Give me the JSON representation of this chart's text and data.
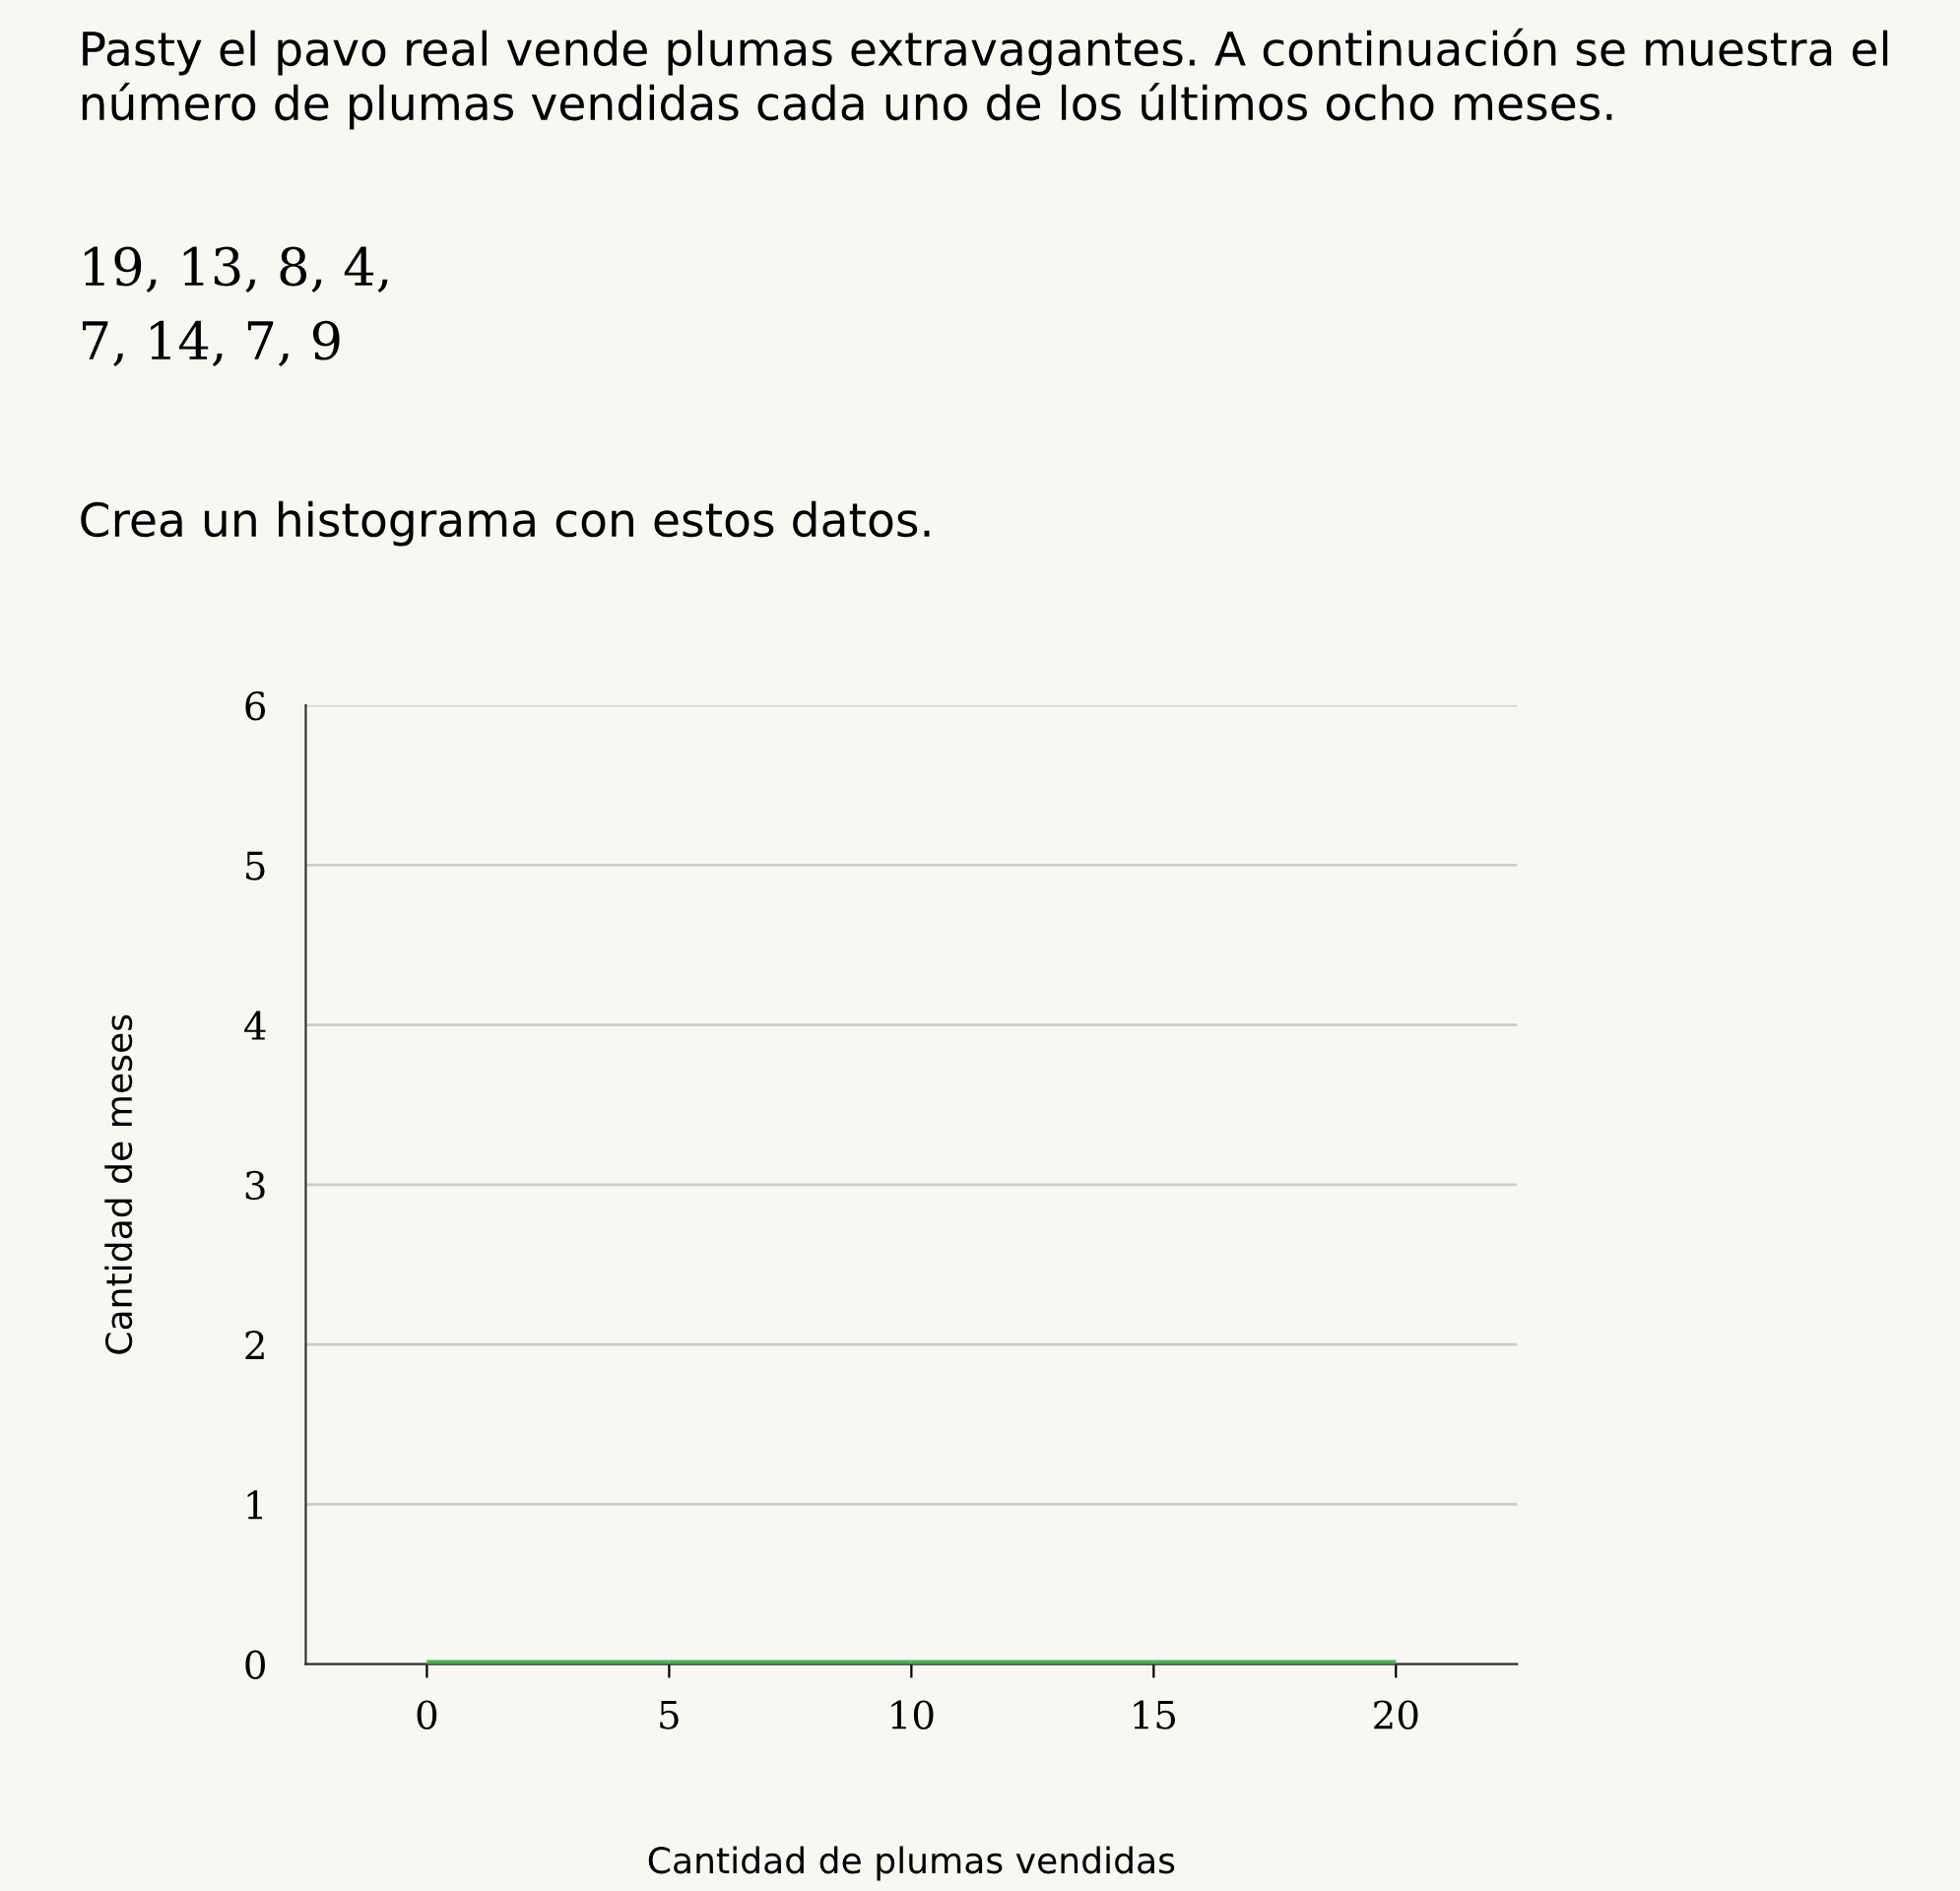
{
  "chart_data": {
    "type": "histogram",
    "title": "Pasty el pavo real vende plumas extravagantes. A continuación se muestra el número de plumas vendidas cada uno de los últimos ocho meses.",
    "annotations": [
      "19, 13, 8, 4,\n7, 14, 7, 9",
      "Crea un histograma con estos datos."
    ],
    "xlabel": "Cantidad de plumas vendidas",
    "ylabel": "Cantidad de meses",
    "bins": [
      0,
      5,
      10,
      15,
      20
    ],
    "values": [
      0,
      0,
      0,
      0
    ],
    "color": "#4caf50",
    "xlim": [
      -2.5,
      22.5
    ],
    "xticks": [
      0,
      5,
      10,
      15,
      20
    ],
    "ylim": [
      0,
      6
    ],
    "yticks": [
      0,
      1,
      2,
      3,
      4,
      5,
      6
    ],
    "grid": "y"
  }
}
